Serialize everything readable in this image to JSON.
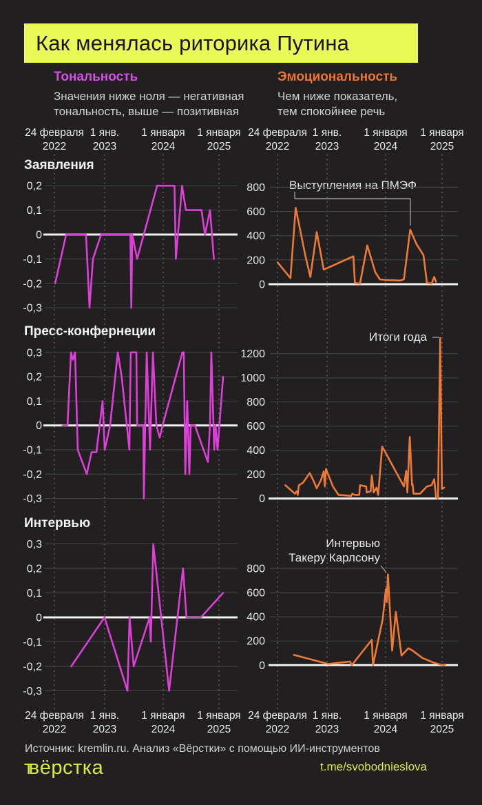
{
  "title": "Как менялась риторика Путина",
  "legend": {
    "tonality": {
      "heading": "Тональность",
      "desc": [
        "Значения ниже ноля — негативная",
        "тональность, выше — позитивная"
      ]
    },
    "emotionality": {
      "heading": "Эмоциональность",
      "desc": [
        "Чем ниже показатель,",
        "тем спокойнее речь"
      ]
    }
  },
  "axis": {
    "labels": [
      [
        "24 февраля",
        "2022"
      ],
      [
        "1 янв.",
        "2023"
      ],
      [
        "1 января",
        "2024"
      ],
      [
        "1 января",
        "2025"
      ]
    ]
  },
  "rows": [
    "Заявления",
    "Пресс-конфернеции",
    "Интервью"
  ],
  "footer": {
    "source": "Источник: kremlin.ru. Анализ «Вёрстки» с помощью ИИ-инструментов",
    "logo_prefix": "т",
    "logo": "вёрстка",
    "link": "t.me/svobodnieslova"
  },
  "colors": {
    "background": "#211f20",
    "title_bg": "#eaf858",
    "magenta": "#dd3fd8",
    "orange": "#ee7a38",
    "zero_line": "#f2f2f2",
    "grid": "#4a4a4a",
    "grid_dots": "#6f6f6f",
    "text": "#ececec",
    "muted": "#cfcfcf",
    "accent_green": "#d9ec42",
    "callout": "#9a9a9a"
  },
  "chart_data": [
    {
      "id": "l1",
      "type": "line",
      "row": "Заявления",
      "metric": "Тональность",
      "color": "magenta",
      "x_categories": [
        "24 февраля 2022",
        "1 янв. 2023",
        "1 января 2024",
        "1 января 2025"
      ],
      "ylim": [
        -0.35,
        0.25
      ],
      "yticks": [
        "0,2",
        "0,1",
        "0",
        "-0,1",
        "-0,2",
        "-0,3"
      ],
      "ytick_values": [
        0.2,
        0.1,
        0,
        -0.1,
        -0.2,
        -0.3
      ],
      "points": [
        [
          0.054,
          -0.2
        ],
        [
          0.111,
          0
        ],
        [
          0.214,
          0
        ],
        [
          0.232,
          -0.3
        ],
        [
          0.25,
          -0.1
        ],
        [
          0.292,
          0
        ],
        [
          0.444,
          0
        ],
        [
          0.449,
          -0.3
        ],
        [
          0.454,
          0
        ],
        [
          0.479,
          -0.1
        ],
        [
          0.583,
          0.2
        ],
        [
          0.673,
          0.2
        ],
        [
          0.68,
          -0.1
        ],
        [
          0.712,
          0.2
        ],
        [
          0.732,
          0.1
        ],
        [
          0.813,
          0.1
        ],
        [
          0.831,
          0
        ],
        [
          0.857,
          0.1
        ],
        [
          0.877,
          -0.1
        ]
      ]
    },
    {
      "id": "r1",
      "type": "line",
      "row": "Заявления",
      "metric": "Эмоциональность",
      "color": "orange",
      "x_categories": [
        "24 февраля 2022",
        "1 янв. 2023",
        "1 января 2024",
        "1 января 2025"
      ],
      "ylim": [
        0,
        900
      ],
      "yticks": [
        "800",
        "600",
        "400",
        "200",
        "0"
      ],
      "ytick_values": [
        800,
        600,
        400,
        200,
        0
      ],
      "annotation": "Выступления на ПМЭФ",
      "points": [
        [
          0.041,
          180
        ],
        [
          0.109,
          50
        ],
        [
          0.137,
          630
        ],
        [
          0.188,
          240
        ],
        [
          0.215,
          60
        ],
        [
          0.249,
          430
        ],
        [
          0.286,
          120
        ],
        [
          0.444,
          230
        ],
        [
          0.452,
          10
        ],
        [
          0.479,
          5
        ],
        [
          0.518,
          320
        ],
        [
          0.56,
          100
        ],
        [
          0.585,
          40
        ],
        [
          0.615,
          35
        ],
        [
          0.689,
          30
        ],
        [
          0.713,
          40
        ],
        [
          0.746,
          450
        ],
        [
          0.78,
          330
        ],
        [
          0.817,
          240
        ],
        [
          0.835,
          10
        ],
        [
          0.86,
          5
        ],
        [
          0.874,
          60
        ],
        [
          0.884,
          20
        ]
      ]
    },
    {
      "id": "l2",
      "type": "line",
      "row": "Пресс-конфернеции",
      "metric": "Тональность",
      "color": "magenta",
      "x_categories": [
        "24 февраля 2022",
        "1 янв. 2023",
        "1 января 2024",
        "1 января 2025"
      ],
      "ylim": [
        -0.35,
        0.35
      ],
      "yticks": [
        "0,3",
        "0,2",
        "0,1",
        "0",
        "-0,1",
        "-0,2",
        "-0,3"
      ],
      "ytick_values": [
        0.3,
        0.2,
        0.1,
        0,
        -0.1,
        -0.2,
        -0.3
      ],
      "points": [
        [
          0.093,
          0
        ],
        [
          0.118,
          0
        ],
        [
          0.136,
          0.3
        ],
        [
          0.146,
          0.27
        ],
        [
          0.157,
          0.3
        ],
        [
          0.171,
          -0.1
        ],
        [
          0.218,
          -0.2
        ],
        [
          0.243,
          -0.11
        ],
        [
          0.268,
          -0.11
        ],
        [
          0.3,
          0.1
        ],
        [
          0.311,
          -0.1
        ],
        [
          0.339,
          0
        ],
        [
          0.379,
          0.3
        ],
        [
          0.399,
          0.2
        ],
        [
          0.439,
          -0.1
        ],
        [
          0.446,
          0.3
        ],
        [
          0.475,
          0.3
        ],
        [
          0.479,
          0
        ],
        [
          0.511,
          0
        ],
        [
          0.514,
          -0.3
        ],
        [
          0.521,
          0
        ],
        [
          0.529,
          0.3
        ],
        [
          0.546,
          -0.1
        ],
        [
          0.561,
          0.3
        ],
        [
          0.579,
          0
        ],
        [
          0.596,
          -0.05
        ],
        [
          0.611,
          0
        ],
        [
          0.714,
          0.3
        ],
        [
          0.721,
          0.3
        ],
        [
          0.729,
          -0.2
        ],
        [
          0.739,
          0.1
        ],
        [
          0.75,
          -0.2
        ],
        [
          0.757,
          0
        ],
        [
          0.779,
          0
        ],
        [
          0.846,
          -0.15
        ],
        [
          0.857,
          0
        ],
        [
          0.864,
          0.3
        ],
        [
          0.879,
          -0.1
        ],
        [
          0.886,
          0
        ],
        [
          0.896,
          -0.1
        ],
        [
          0.925,
          0.2
        ]
      ]
    },
    {
      "id": "r2",
      "type": "line",
      "row": "Пресс-конфернеции",
      "metric": "Эмоциональность",
      "color": "orange",
      "x_categories": [
        "24 февраля 2022",
        "1 янв. 2023",
        "1 января 2024",
        "1 января 2025"
      ],
      "ylim": [
        0,
        1400
      ],
      "yticks": [
        "1200",
        "1000",
        "800",
        "600",
        "400",
        "200",
        "0"
      ],
      "ytick_values": [
        1200,
        1000,
        800,
        600,
        400,
        200,
        0
      ],
      "annotation": "Итоги года",
      "points": [
        [
          0.082,
          110
        ],
        [
          0.133,
          40
        ],
        [
          0.143,
          60
        ],
        [
          0.148,
          30
        ],
        [
          0.154,
          110
        ],
        [
          0.176,
          130
        ],
        [
          0.2,
          185
        ],
        [
          0.212,
          210
        ],
        [
          0.231,
          150
        ],
        [
          0.249,
          85
        ],
        [
          0.271,
          150
        ],
        [
          0.286,
          225
        ],
        [
          0.292,
          100
        ],
        [
          0.298,
          245
        ],
        [
          0.335,
          100
        ],
        [
          0.365,
          30
        ],
        [
          0.408,
          25
        ],
        [
          0.432,
          20
        ],
        [
          0.438,
          40
        ],
        [
          0.45,
          30
        ],
        [
          0.475,
          30
        ],
        [
          0.479,
          110
        ],
        [
          0.512,
          100
        ],
        [
          0.515,
          50
        ],
        [
          0.536,
          60
        ],
        [
          0.542,
          190
        ],
        [
          0.552,
          50
        ],
        [
          0.567,
          90
        ],
        [
          0.576,
          30
        ],
        [
          0.597,
          430
        ],
        [
          0.615,
          380
        ],
        [
          0.713,
          100
        ],
        [
          0.725,
          230
        ],
        [
          0.731,
          50
        ],
        [
          0.744,
          510
        ],
        [
          0.756,
          110
        ],
        [
          0.759,
          120
        ],
        [
          0.764,
          40
        ],
        [
          0.799,
          40
        ],
        [
          0.835,
          100
        ],
        [
          0.86,
          110
        ],
        [
          0.874,
          160
        ],
        [
          0.884,
          10
        ],
        [
          0.894,
          0
        ],
        [
          0.906,
          1330
        ],
        [
          0.915,
          80
        ],
        [
          0.927,
          90
        ]
      ]
    },
    {
      "id": "l3",
      "type": "line",
      "row": "Интервью",
      "metric": "Тональность",
      "color": "magenta",
      "x_categories": [
        "24 февраля 2022",
        "1 янв. 2023",
        "1 января 2024",
        "1 января 2025"
      ],
      "ylim": [
        -0.35,
        0.35
      ],
      "yticks": [
        "0,3",
        "0,2",
        "0,1",
        "0",
        "-0,1",
        "-0,2",
        "-0,3"
      ],
      "ytick_values": [
        0.3,
        0.2,
        0.1,
        0,
        -0.1,
        -0.2,
        -0.3
      ],
      "points": [
        [
          0.137,
          -0.2
        ],
        [
          0.31,
          0
        ],
        [
          0.429,
          -0.3
        ],
        [
          0.44,
          0
        ],
        [
          0.461,
          -0.2
        ],
        [
          0.544,
          0
        ],
        [
          0.55,
          -0.1
        ],
        [
          0.563,
          0.3
        ],
        [
          0.645,
          -0.3
        ],
        [
          0.717,
          0.2
        ],
        [
          0.735,
          0
        ],
        [
          0.81,
          0
        ],
        [
          0.925,
          0.1
        ]
      ]
    },
    {
      "id": "r3",
      "type": "line",
      "row": "Интервью",
      "metric": "Эмоциональность",
      "color": "orange",
      "x_categories": [
        "24 февраля 2022",
        "1 янв. 2023",
        "1 января 2024",
        "1 января 2025"
      ],
      "ylim": [
        0,
        900
      ],
      "yticks": [
        "800",
        "600",
        "400",
        "200",
        "0"
      ],
      "ytick_values": [
        800,
        600,
        400,
        200,
        0
      ],
      "annotation_lines": [
        "Интервью",
        "Такеру Карлсону"
      ],
      "points": [
        [
          0.127,
          85
        ],
        [
          0.31,
          10
        ],
        [
          0.426,
          30
        ],
        [
          0.435,
          0
        ],
        [
          0.542,
          210
        ],
        [
          0.548,
          0
        ],
        [
          0.6,
          380
        ],
        [
          0.617,
          630
        ],
        [
          0.621,
          520
        ],
        [
          0.628,
          750
        ],
        [
          0.65,
          120
        ],
        [
          0.67,
          440
        ],
        [
          0.7,
          80
        ],
        [
          0.737,
          140
        ],
        [
          0.76,
          120
        ],
        [
          0.811,
          60
        ],
        [
          0.872,
          20
        ],
        [
          0.918,
          0
        ],
        [
          0.933,
          5
        ]
      ]
    }
  ]
}
